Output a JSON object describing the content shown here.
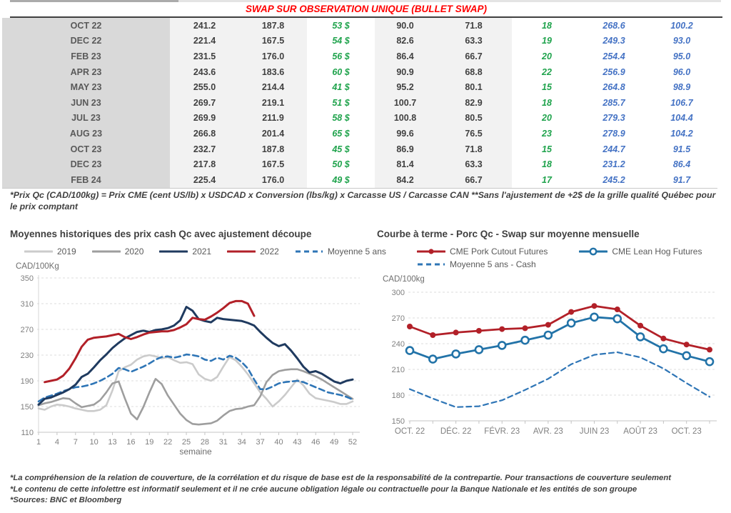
{
  "page": {
    "table_title": "SWAP SUR OBSERVATION UNIQUE (BULLET SWAP)",
    "table_footnote": "*Prix Qc (CAD/100kg) = Prix CME (cent US/lb) x USDCAD x Conversion (lbs/kg) x Carcasse US / Carcasse CAN **Sans l'ajustement de +2$ de la grille qualité Québec pour le prix comptant",
    "footnotes": [
      "*La compréhension de la relation de couverture, de la corrélation et du risque de base est de la responsabilité de la contrepartie. Pour transactions de couverture seulement",
      "*Le contenu de cette infolettre est informatif seulement et il ne crée aucune obligation légale ou contractuelle pour la Banque Nationale et les entités de son groupe",
      "*Sources: BNC et Bloomberg"
    ]
  },
  "colors": {
    "title_red": "#FF0000",
    "green_text": "#1FA34C",
    "blue_text": "#4472C4",
    "dark_text": "#404040",
    "month_bg": "#D9D9D9",
    "light_bg": "#F2F2F2"
  },
  "table": {
    "col_styles": [
      "month",
      "num",
      "num",
      "green",
      "num",
      "num",
      "green",
      "blue",
      "blue"
    ],
    "rows": [
      [
        "OCT 22",
        "241.2",
        "187.8",
        "53 $",
        "90.0",
        "71.8",
        "18",
        "268.6",
        "100.2"
      ],
      [
        "DEC 22",
        "221.4",
        "167.5",
        "54 $",
        "82.6",
        "63.3",
        "19",
        "249.3",
        "93.0"
      ],
      [
        "FEB 23",
        "231.5",
        "176.0",
        "56 $",
        "86.4",
        "66.7",
        "20",
        "254.4",
        "95.0"
      ],
      [
        "APR 23",
        "243.6",
        "183.6",
        "60 $",
        "90.9",
        "68.8",
        "22",
        "256.9",
        "96.0"
      ],
      [
        "MAY 23",
        "255.0",
        "214.4",
        "41 $",
        "95.2",
        "80.1",
        "15",
        "264.8",
        "98.9"
      ],
      [
        "JUN 23",
        "269.7",
        "219.1",
        "51 $",
        "100.7",
        "82.9",
        "18",
        "285.7",
        "106.7"
      ],
      [
        "JUL 23",
        "269.9",
        "211.9",
        "58 $",
        "100.8",
        "80.5",
        "20",
        "279.3",
        "104.4"
      ],
      [
        "AUG 23",
        "266.8",
        "201.4",
        "65 $",
        "99.6",
        "76.5",
        "23",
        "278.9",
        "104.2"
      ],
      [
        "OCT 23",
        "232.7",
        "187.8",
        "45 $",
        "86.9",
        "71.8",
        "15",
        "244.7",
        "91.5"
      ],
      [
        "DEC 23",
        "217.8",
        "167.5",
        "50 $",
        "81.4",
        "63.3",
        "18",
        "231.2",
        "86.4"
      ],
      [
        "FEB 24",
        "225.4",
        "176.0",
        "49 $",
        "84.2",
        "66.7",
        "17",
        "245.2",
        "91.7"
      ]
    ]
  },
  "chart_data": [
    {
      "type": "line",
      "title": "Moyennes historiques des prix cash Qc avec ajustement découpe",
      "y_unit": "CAD/100Kg",
      "xlabel": "semaine",
      "ylim": [
        110,
        350
      ],
      "yticks": [
        110,
        150,
        190,
        230,
        270,
        310,
        350
      ],
      "x": [
        1,
        2,
        3,
        4,
        5,
        6,
        7,
        8,
        9,
        10,
        11,
        12,
        13,
        14,
        15,
        16,
        17,
        18,
        19,
        20,
        21,
        22,
        23,
        24,
        25,
        26,
        27,
        28,
        29,
        30,
        31,
        32,
        33,
        34,
        35,
        36,
        37,
        38,
        39,
        40,
        41,
        42,
        43,
        44,
        45,
        46,
        47,
        48,
        49,
        50,
        51,
        52
      ],
      "xticks": [
        1,
        4,
        7,
        10,
        13,
        16,
        19,
        22,
        25,
        28,
        31,
        34,
        37,
        40,
        43,
        46,
        49,
        52
      ],
      "grid": "dashed-horizontal",
      "legend_position": "top",
      "draw_order": [
        0,
        1,
        4,
        2,
        3
      ],
      "series": [
        {
          "name": "2019",
          "color": "#CBCBCB",
          "width": 2.6,
          "values": [
            147,
            145,
            150,
            153,
            152,
            150,
            147,
            145,
            143,
            143,
            145,
            152,
            175,
            205,
            211,
            215,
            223,
            228,
            230,
            228,
            225,
            227,
            222,
            218,
            219,
            216,
            200,
            193,
            190,
            196,
            212,
            227,
            222,
            212,
            200,
            186,
            172,
            162,
            150,
            158,
            168,
            180,
            192,
            183,
            170,
            163,
            161,
            159,
            157,
            154,
            154,
            158
          ]
        },
        {
          "name": "2020",
          "color": "#9E9E9E",
          "width": 2.6,
          "values": [
            152,
            155,
            157,
            160,
            163,
            162,
            155,
            149,
            151,
            153,
            160,
            172,
            186,
            189,
            163,
            139,
            130,
            149,
            172,
            193,
            185,
            167,
            153,
            139,
            129,
            123,
            122,
            123,
            124,
            128,
            136,
            143,
            146,
            147,
            150,
            152,
            166,
            188,
            199,
            205,
            207,
            208,
            208,
            205,
            201,
            197,
            192,
            186,
            180,
            174,
            168,
            162
          ]
        },
        {
          "name": "2021",
          "color": "#1F3A5F",
          "width": 3,
          "values": [
            153,
            162,
            164,
            168,
            172,
            177,
            184,
            196,
            201,
            211,
            222,
            231,
            241,
            249,
            256,
            261,
            266,
            268,
            266,
            269,
            270,
            272,
            276,
            284,
            305,
            299,
            286,
            283,
            281,
            288,
            286,
            285,
            284,
            283,
            280,
            276,
            266,
            257,
            249,
            244,
            247,
            237,
            225,
            212,
            203,
            205,
            201,
            195,
            189,
            186,
            190,
            192
          ]
        },
        {
          "name": "2022",
          "color": "#B22028",
          "width": 3,
          "values": [
            null,
            188,
            190,
            192,
            198,
            209,
            225,
            243,
            254,
            257,
            258,
            259,
            261,
            263,
            258,
            255,
            258,
            262,
            265,
            266,
            267,
            267,
            269,
            273,
            278,
            288,
            286,
            285,
            290,
            296,
            303,
            311,
            314,
            314,
            310,
            291,
            null,
            null,
            null,
            null,
            null,
            null,
            null,
            null,
            null,
            null,
            null,
            null,
            null,
            null,
            null,
            null
          ]
        },
        {
          "name": "Moyenne 5 ans",
          "color": "#2E75B6",
          "width": 2.6,
          "dash": "8 5",
          "values": [
            158,
            164,
            167,
            170,
            174,
            177,
            180,
            181,
            183,
            186,
            190,
            195,
            201,
            210,
            208,
            204,
            208,
            212,
            217,
            223,
            227,
            228,
            226,
            228,
            231,
            230,
            228,
            223,
            221,
            226,
            223,
            229,
            226,
            219,
            209,
            192,
            177,
            177,
            181,
            186,
            188,
            189,
            190,
            188,
            184,
            180,
            176,
            172,
            170,
            168,
            165,
            161
          ]
        }
      ]
    },
    {
      "type": "line",
      "title": "Courbe à terme - Porc Qc - Swap sur moyenne mensuelle",
      "y_unit": "CAD/100kg",
      "ylim": [
        150,
        300
      ],
      "yticks": [
        150,
        180,
        210,
        240,
        270,
        300
      ],
      "categories": [
        "OCT. 22",
        "NOV. 22",
        "DÉC. 22",
        "JANV. 23",
        "FÉVR. 23",
        "MARS 23",
        "AVR. 23",
        "MAI 23",
        "JUIN 23",
        "JUIL. 23",
        "AOÛT 23",
        "SEPT. 23",
        "OCT. 23",
        "NOV. 23"
      ],
      "xtick_every": 2,
      "grid": "dashed-horizontal",
      "legend_position": "top",
      "draw_order": [
        2,
        1,
        0
      ],
      "legend_rows": [
        [
          0,
          1
        ],
        [
          2
        ]
      ],
      "series": [
        {
          "name": "CME Pork Cutout Futures",
          "color": "#B22028",
          "width": 2.8,
          "marker": "filled",
          "values": [
            260,
            250,
            253,
            255,
            257,
            258,
            262,
            277,
            284,
            280,
            261,
            246,
            239,
            233
          ]
        },
        {
          "name": "CME Lean Hog Futures",
          "color": "#2273A8",
          "width": 2.8,
          "marker": "open",
          "values": [
            232,
            222,
            228,
            233,
            238,
            244,
            250,
            264,
            271,
            269,
            248,
            234,
            226,
            219
          ]
        },
        {
          "name": "Moyenne 5 ans - Cash",
          "color": "#2E75B6",
          "width": 2.2,
          "dash": "7 5",
          "values": [
            187,
            176,
            166,
            167,
            174,
            186,
            199,
            216,
            227,
            230,
            224,
            211,
            194,
            178
          ]
        }
      ]
    }
  ]
}
